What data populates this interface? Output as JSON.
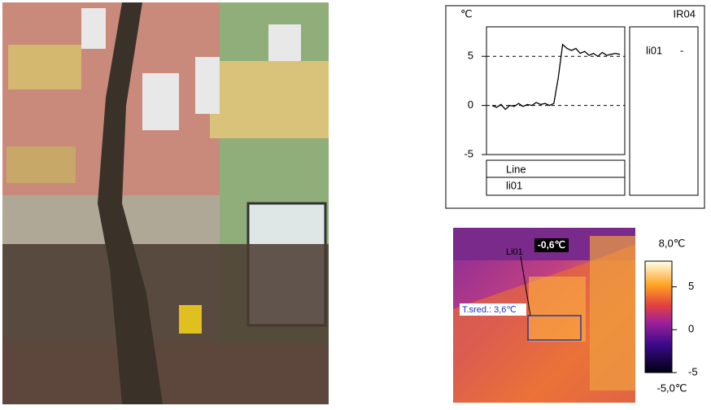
{
  "chart_data": {
    "type": "line",
    "unit_label": "℃",
    "title": "IR04",
    "series": [
      {
        "name": "li01",
        "color": "#000000",
        "values": [
          0,
          -0.2,
          0.1,
          -0.4,
          0,
          -0.1,
          0.2,
          -0.1,
          0.1,
          0,
          0.3,
          0.1,
          0.2,
          0,
          0.2,
          2.8,
          6.2,
          5.8,
          5.6,
          5.8,
          5.3,
          5.5,
          5.1,
          5.3,
          5.0,
          5.4,
          5.1,
          5.2,
          5.3,
          5.2
        ]
      }
    ],
    "ylim": [
      -5,
      8
    ],
    "yticks": [
      -5,
      0,
      5
    ],
    "grid": true,
    "legend_header": "Line",
    "legend_value": "-"
  },
  "thermogram": {
    "spot_label": "-0,6℃",
    "line_label": "Li01",
    "area_label": "T.sred.: 3,6℃",
    "clim": [
      -5,
      8
    ],
    "ticks": [
      5,
      0,
      -5
    ],
    "max_label": "8,0℃",
    "min_label": "-5,0℃"
  }
}
